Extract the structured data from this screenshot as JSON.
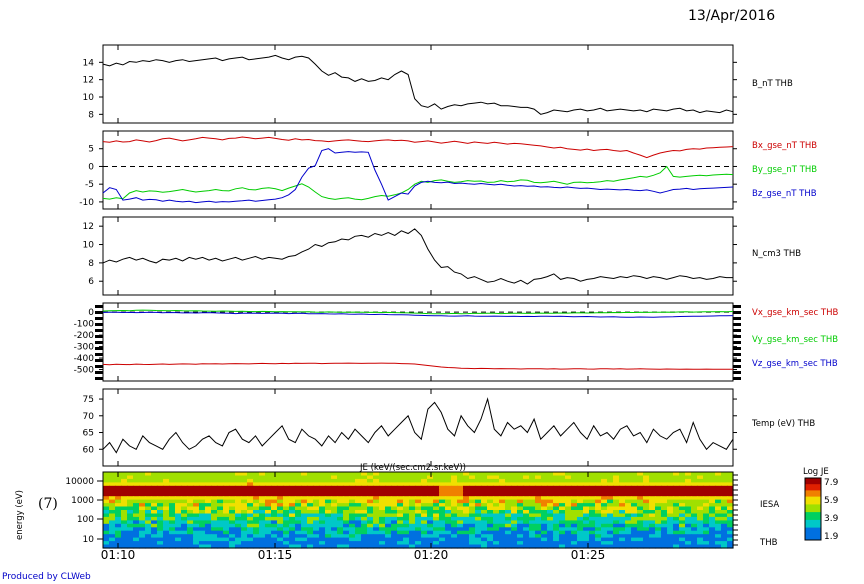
{
  "header": {
    "date": "13/Apr/2016",
    "credit": "Produced by CLWeb",
    "spec_tag": "(7)"
  },
  "chart_data": [
    {
      "type": "line",
      "panel": "B",
      "ylim": [
        7,
        16
      ],
      "yticks": [
        8,
        10,
        12,
        14
      ],
      "series": [
        {
          "name": "B_nT THB",
          "color": "#000000",
          "values": [
            13.8,
            13.6,
            13.9,
            13.7,
            14.1,
            14.0,
            14.2,
            14.1,
            14.3,
            14.2,
            14.0,
            14.2,
            14.3,
            14.1,
            14.2,
            14.3,
            14.4,
            14.5,
            14.2,
            14.4,
            14.5,
            14.6,
            14.3,
            14.4,
            14.5,
            14.6,
            14.8,
            14.5,
            14.3,
            14.6,
            14.7,
            14.5,
            13.8,
            13.0,
            12.5,
            12.8,
            12.3,
            12.2,
            11.8,
            12.1,
            11.8,
            11.9,
            12.2,
            12.0,
            12.6,
            13.0,
            12.6,
            9.8,
            9.0,
            8.8,
            9.2,
            8.6,
            8.9,
            9.1,
            9.0,
            9.2,
            9.3,
            9.4,
            9.2,
            9.3,
            9.0,
            9.0,
            8.9,
            8.8,
            8.8,
            8.6,
            8.0,
            8.2,
            8.5,
            8.4,
            8.3,
            8.5,
            8.6,
            8.4,
            8.5,
            8.7,
            8.4,
            8.5,
            8.6,
            8.5,
            8.4,
            8.5,
            8.3,
            8.6,
            8.5,
            8.4,
            8.6,
            8.7,
            8.4,
            8.5,
            8.2,
            8.4,
            8.3,
            8.2,
            8.5,
            8.3
          ]
        }
      ]
    },
    {
      "type": "line",
      "panel": "Bgse",
      "ylim": [
        -12,
        10
      ],
      "yticks": [
        -10,
        -5,
        0,
        5
      ],
      "zero_line": true,
      "series": [
        {
          "name": "Bx_gse_nT THB",
          "color": "#cc0000",
          "values": [
            7.0,
            6.8,
            7.2,
            6.9,
            7.0,
            7.5,
            7.2,
            6.9,
            7.3,
            7.8,
            8.0,
            7.6,
            7.2,
            7.5,
            7.8,
            8.2,
            8.0,
            7.8,
            7.5,
            7.9,
            8.0,
            8.3,
            8.1,
            7.8,
            8.0,
            8.2,
            7.9,
            7.6,
            7.4,
            7.8,
            7.5,
            7.6,
            7.3,
            7.2,
            7.0,
            7.2,
            7.4,
            7.5,
            7.3,
            7.1,
            7.0,
            7.2,
            7.4,
            7.5,
            7.3,
            7.4,
            7.2,
            6.8,
            7.0,
            7.2,
            6.9,
            6.6,
            6.8,
            7.1,
            6.8,
            6.5,
            6.9,
            6.7,
            6.5,
            6.8,
            6.6,
            6.3,
            6.5,
            6.4,
            6.2,
            6.0,
            5.8,
            5.5,
            5.2,
            5.4,
            5.0,
            4.8,
            4.6,
            4.9,
            4.5,
            4.7,
            4.8,
            4.5,
            4.3,
            4.5,
            3.8,
            3.2,
            2.5,
            3.2,
            3.8,
            4.2,
            4.5,
            4.4,
            4.8,
            5.0,
            4.9,
            5.2,
            5.3,
            5.4,
            5.5,
            5.6
          ]
        },
        {
          "name": "By_gse_nT THB",
          "color": "#00cc00",
          "values": [
            -9.0,
            -9.2,
            -8.8,
            -9.1,
            -7.5,
            -6.8,
            -7.2,
            -6.9,
            -7.0,
            -7.3,
            -7.1,
            -6.8,
            -6.5,
            -6.9,
            -7.2,
            -7.0,
            -6.8,
            -6.5,
            -6.8,
            -6.9,
            -6.3,
            -6.0,
            -6.5,
            -6.6,
            -6.2,
            -6.0,
            -6.3,
            -6.8,
            -6.1,
            -5.5,
            -4.9,
            -5.8,
            -7.2,
            -8.5,
            -9.0,
            -9.3,
            -9.0,
            -8.8,
            -9.2,
            -9.4,
            -9.0,
            -8.5,
            -8.2,
            -8.4,
            -8.0,
            -7.5,
            -6.5,
            -5.0,
            -4.2,
            -4.5,
            -4.0,
            -3.8,
            -4.2,
            -4.5,
            -4.3,
            -4.0,
            -4.2,
            -4.1,
            -4.5,
            -4.4,
            -4.0,
            -4.3,
            -4.2,
            -3.8,
            -3.9,
            -4.5,
            -4.6,
            -4.4,
            -4.2,
            -4.6,
            -5.0,
            -4.5,
            -4.4,
            -4.6,
            -4.5,
            -4.3,
            -4.0,
            -4.2,
            -3.8,
            -3.5,
            -3.2,
            -2.8,
            -3.0,
            -2.5,
            -1.8,
            0.0,
            -2.8,
            -3.0,
            -2.8,
            -2.6,
            -2.5,
            -2.6,
            -2.4,
            -2.3,
            -2.2,
            -2.3
          ]
        },
        {
          "name": "Bz_gse_nT THB",
          "color": "#0000cc",
          "values": [
            -7.5,
            -6.0,
            -6.5,
            -9.5,
            -9.2,
            -8.8,
            -9.5,
            -9.3,
            -9.4,
            -9.8,
            -9.5,
            -9.8,
            -10.0,
            -9.8,
            -10.2,
            -10.0,
            -9.8,
            -10.1,
            -9.9,
            -10.0,
            -9.8,
            -9.7,
            -9.5,
            -9.8,
            -9.6,
            -9.4,
            -9.2,
            -8.8,
            -8.0,
            -6.5,
            -3.0,
            -0.5,
            0.2,
            4.5,
            5.0,
            3.8,
            4.0,
            4.2,
            4.0,
            4.1,
            4.0,
            -1.0,
            -5.0,
            -9.5,
            -8.5,
            -7.5,
            -7.8,
            -5.5,
            -4.5,
            -4.2,
            -4.5,
            -4.6,
            -4.4,
            -4.8,
            -4.7,
            -4.9,
            -5.0,
            -4.8,
            -5.0,
            -5.2,
            -5.0,
            -5.3,
            -5.5,
            -5.4,
            -5.6,
            -5.5,
            -5.8,
            -5.7,
            -5.9,
            -6.0,
            -5.8,
            -6.0,
            -6.2,
            -6.1,
            -6.3,
            -6.5,
            -6.4,
            -6.5,
            -6.6,
            -6.5,
            -6.7,
            -6.8,
            -6.6,
            -7.0,
            -7.5,
            -7.0,
            -6.5,
            -6.4,
            -6.2,
            -6.5,
            -6.3,
            -6.2,
            -6.1,
            -6.0,
            -5.9,
            -5.8
          ]
        }
      ]
    },
    {
      "type": "line",
      "panel": "N",
      "ylim": [
        4.5,
        13
      ],
      "yticks": [
        6,
        8,
        10,
        12
      ],
      "series": [
        {
          "name": "N_cm3 THB",
          "color": "#000000",
          "values": [
            8.0,
            8.3,
            8.1,
            8.4,
            8.6,
            8.3,
            8.5,
            8.2,
            8.0,
            8.4,
            8.3,
            8.5,
            8.2,
            8.6,
            8.4,
            8.6,
            8.3,
            8.5,
            8.2,
            8.4,
            8.6,
            8.3,
            8.5,
            8.7,
            8.4,
            8.6,
            8.5,
            8.4,
            8.7,
            8.8,
            9.2,
            9.5,
            10.0,
            9.8,
            10.2,
            10.3,
            10.6,
            10.5,
            10.9,
            11.0,
            10.8,
            11.2,
            11.0,
            11.3,
            11.0,
            11.5,
            11.2,
            11.7,
            11.0,
            9.5,
            8.3,
            7.5,
            7.6,
            7.0,
            6.8,
            6.3,
            6.5,
            6.2,
            5.9,
            6.0,
            6.3,
            6.0,
            5.8,
            6.1,
            5.7,
            6.2,
            6.3,
            6.5,
            6.8,
            6.2,
            6.4,
            6.3,
            6.0,
            6.2,
            6.3,
            6.5,
            6.4,
            6.3,
            6.5,
            6.4,
            6.6,
            6.5,
            6.3,
            6.5,
            6.4,
            6.2,
            6.4,
            6.6,
            6.5,
            6.3,
            6.4,
            6.2,
            6.3,
            6.5,
            6.4,
            6.4
          ]
        }
      ]
    },
    {
      "type": "line",
      "panel": "V",
      "ylim": [
        -600,
        80
      ],
      "yticks": [
        0,
        -100,
        -200,
        -300,
        -400,
        -500
      ],
      "zero_line": true,
      "series": [
        {
          "name": "Vx_gse_km_sec THB",
          "color": "#cc0000",
          "values": [
            -455,
            -458,
            -454,
            -456,
            -457,
            -453,
            -455,
            -456,
            -454,
            -452,
            -455,
            -453,
            -451,
            -452,
            -454,
            -450,
            -451,
            -449,
            -452,
            -450,
            -448,
            -449,
            -451,
            -448,
            -447,
            -448,
            -450,
            -447,
            -448,
            -446,
            -447,
            -445,
            -446,
            -448,
            -447,
            -445,
            -446,
            -444,
            -446,
            -447,
            -445,
            -446,
            -444,
            -445,
            -446,
            -448,
            -450,
            -452,
            -458,
            -465,
            -472,
            -478,
            -482,
            -485,
            -488,
            -490,
            -492,
            -490,
            -491,
            -493,
            -492,
            -494,
            -493,
            -495,
            -494,
            -493,
            -494,
            -495,
            -494,
            -496,
            -495,
            -494,
            -493,
            -495,
            -496,
            -494,
            -493,
            -495,
            -494,
            -496,
            -495,
            -494,
            -495,
            -496,
            -497,
            -495,
            -496,
            -497,
            -496,
            -497,
            -498,
            -496,
            -497,
            -498,
            -497,
            -498
          ]
        },
        {
          "name": "Vy_gse_km_sec THB",
          "color": "#00cc00",
          "values": [
            10,
            12,
            14,
            15,
            13,
            16,
            18,
            17,
            15,
            14,
            13,
            15,
            12,
            11,
            13,
            10,
            9,
            8,
            10,
            9,
            7,
            8,
            6,
            5,
            7,
            6,
            4,
            5,
            3,
            4,
            2,
            3,
            1,
            0,
            2,
            1,
            0,
            -1,
            1,
            0,
            -2,
            -1,
            -3,
            -2,
            -4,
            -5,
            -6,
            -8,
            -10,
            -12,
            -13,
            -14,
            -12,
            -11,
            -13,
            -12,
            -10,
            -11,
            -9,
            -10,
            -12,
            -11,
            -10,
            -9,
            -11,
            -10,
            -8,
            -9,
            -10,
            -7,
            -8,
            -6,
            -5,
            -7,
            -6,
            -4,
            -5,
            -3,
            -4,
            -2,
            -3,
            -1,
            -2,
            0,
            -1,
            1,
            0,
            2,
            3,
            1,
            2,
            4,
            3,
            5,
            4,
            6
          ]
        },
        {
          "name": "Vz_gse_km_sec THB",
          "color": "#0000cc",
          "values": [
            -2,
            -1,
            0,
            -3,
            -2,
            -4,
            -3,
            -1,
            -2,
            -5,
            -3,
            -4,
            -6,
            -5,
            -7,
            -5,
            -4,
            -6,
            -8,
            -10,
            -12,
            -9,
            -8,
            -10,
            -11,
            -9,
            -8,
            -10,
            -12,
            -11,
            -10,
            -13,
            -14,
            -12,
            -15,
            -16,
            -14,
            -17,
            -18,
            -16,
            -19,
            -20,
            -18,
            -21,
            -22,
            -23,
            -24,
            -26,
            -28,
            -30,
            -32,
            -31,
            -33,
            -34,
            -33,
            -32,
            -34,
            -35,
            -36,
            -34,
            -35,
            -37,
            -36,
            -38,
            -37,
            -38,
            -36,
            -35,
            -37,
            -36,
            -38,
            -40,
            -39,
            -38,
            -40,
            -42,
            -41,
            -40,
            -43,
            -45,
            -44,
            -42,
            -43,
            -44,
            -42,
            -41,
            -40,
            -38,
            -37,
            -36,
            -35,
            -34,
            -33,
            -32,
            -31,
            -30
          ]
        }
      ]
    },
    {
      "type": "line",
      "panel": "T",
      "ylim": [
        55,
        78
      ],
      "yticks": [
        60,
        65,
        70,
        75
      ],
      "series": [
        {
          "name": "Temp (eV) THB",
          "color": "#000000",
          "values": [
            60,
            62,
            59,
            63,
            61,
            60,
            64,
            62,
            61,
            60,
            63,
            65,
            62,
            60,
            61,
            63,
            64,
            62,
            61,
            65,
            66,
            63,
            62,
            64,
            61,
            63,
            65,
            67,
            63,
            62,
            66,
            64,
            63,
            61,
            64,
            62,
            65,
            63,
            66,
            64,
            62,
            65,
            67,
            64,
            66,
            68,
            70,
            65,
            63,
            72,
            74,
            71,
            66,
            64,
            70,
            67,
            65,
            69,
            75,
            66,
            64,
            68,
            66,
            67,
            65,
            69,
            63,
            65,
            67,
            64,
            66,
            68,
            65,
            63,
            67,
            64,
            65,
            63,
            66,
            67,
            64,
            65,
            62,
            66,
            64,
            63,
            65,
            66,
            62,
            68,
            63,
            60,
            62,
            61,
            60,
            63
          ]
        }
      ]
    },
    {
      "type": "heatmap",
      "panel": "IESA",
      "title": "JE (keV/(sec.cm2.sr.keV))",
      "ylabel": "energy (eV)",
      "yticks": [
        "10",
        "100",
        "1000",
        "10000"
      ],
      "colorbar_label": "Log JE",
      "colorbar_ticks": [
        "7.9",
        "5.9",
        "3.9",
        "1.9"
      ],
      "vlim": [
        1.9,
        7.9
      ],
      "right_labels": [
        "IESA",
        "THB"
      ]
    }
  ],
  "xaxis": {
    "ticks": [
      "01:10",
      "01:15",
      "01:20",
      "01:25"
    ]
  },
  "labels": {
    "b": "B_nT THB",
    "bx": "Bx_gse_nT THB",
    "by": "By_gse_nT THB",
    "bz": "Bz_gse_nT THB",
    "n": "N_cm3 THB",
    "vx": "Vx_gse_km_sec THB",
    "vy": "Vy_gse_km_sec THB",
    "vz": "Vz_gse_km_sec THB",
    "t": "Temp (eV) THB",
    "je": "JE (keV/(sec.cm2.sr.keV))",
    "energy": "energy (eV)",
    "iesa": "IESA",
    "thb": "THB",
    "logje": "Log JE"
  }
}
